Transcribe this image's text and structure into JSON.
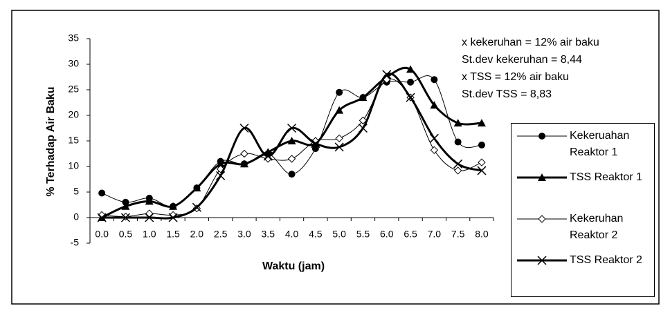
{
  "chart_data": {
    "type": "line",
    "x_label": "Waktu (jam)",
    "y_label": "% Terhadap Air Baku",
    "categories": [
      "0.0",
      "0.5",
      "1.0",
      "1.5",
      "2.0",
      "2.5",
      "3.0",
      "3.5",
      "4.0",
      "4.5",
      "5.0",
      "5.5",
      "6.0",
      "6.5",
      "7.0",
      "7.5",
      "8.0"
    ],
    "series": [
      {
        "name": "Kekeruahan Reaktor 1",
        "color": "#000000",
        "marker": "circle",
        "line_width": 1,
        "values": [
          4.8,
          3.0,
          3.8,
          2.2,
          5.8,
          11,
          10.5,
          12.5,
          8.5,
          13.5,
          24.5,
          23.5,
          26.5,
          26.5,
          27,
          14.8,
          14.2
        ]
      },
      {
        "name": "TSS Reaktor 1",
        "color": "#000000",
        "marker": "triangle",
        "line_width": 3,
        "values": [
          0,
          2.2,
          3.2,
          2.2,
          5.8,
          10.5,
          10.5,
          12.8,
          15,
          14.5,
          21,
          23.5,
          27.5,
          29,
          22,
          18.5,
          18.5
        ]
      },
      {
        "name": "Kekeruhan Reaktor 2",
        "color": "#000000",
        "marker": "diamond",
        "line_width": 1,
        "values": [
          0.5,
          0.2,
          0.8,
          0.5,
          1.8,
          9.5,
          12.5,
          11.5,
          11.5,
          15,
          15.5,
          19,
          27,
          23.5,
          13.2,
          9.2,
          10.8
        ]
      },
      {
        "name": "TSS Reaktor 2",
        "color": "#000000",
        "marker": "cross",
        "line_width": 3,
        "values": [
          0,
          0,
          0,
          0,
          2,
          8.2,
          17.5,
          12,
          17.5,
          14.5,
          13.8,
          17.5,
          28,
          23.5,
          15.5,
          10.5,
          9.2
        ]
      }
    ],
    "ylim": [
      -5,
      35
    ],
    "yticks": [
      -5,
      0,
      5,
      10,
      15,
      20,
      25,
      30,
      35
    ],
    "grid": false,
    "legend": "right",
    "annotations": [
      "x kekeruhan = 12% air baku",
      "St.dev kekeruhan = 8,44",
      "x TSS = 12% air baku",
      "St.dev TSS = 8,83"
    ]
  }
}
